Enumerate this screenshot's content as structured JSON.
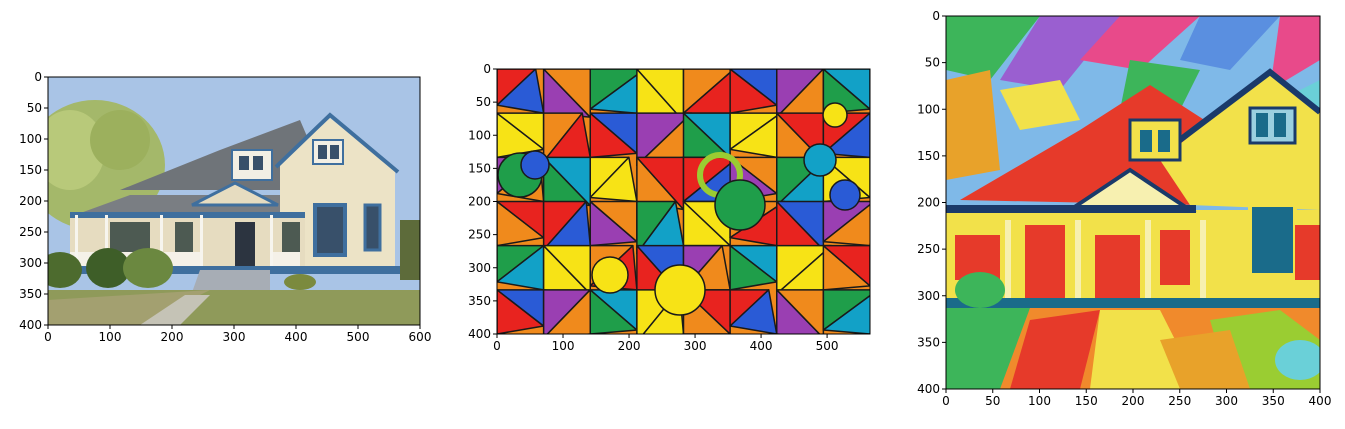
{
  "panels": [
    {
      "id": "house-photo",
      "xticks": [
        "0",
        "100",
        "200",
        "300",
        "400",
        "500",
        "600"
      ],
      "yticks": [
        "0",
        "50",
        "100",
        "150",
        "200",
        "250",
        "300",
        "350",
        "400"
      ],
      "colors": {
        "sky": "#a9c4e6",
        "grass": "#8f9a5a",
        "roof": "#6f7479",
        "siding": "#e6dcc0",
        "trim": "#3f6f9e",
        "tree": "#9bb35c"
      }
    },
    {
      "id": "stained-glass-style",
      "xticks": [
        "0",
        "100",
        "200",
        "300",
        "400",
        "500"
      ],
      "yticks": [
        "0",
        "50",
        "100",
        "150",
        "200",
        "250",
        "300",
        "350",
        "400"
      ],
      "colors": {
        "palette": [
          "#e8231f",
          "#f7e316",
          "#1f9e4a",
          "#2a5bd6",
          "#f08a1c",
          "#12a1c7",
          "#9a3fb2",
          "#e8231f",
          "#f7e316",
          "#f08a1c"
        ]
      }
    },
    {
      "id": "stylized-house",
      "xticks": [
        "0",
        "50",
        "100",
        "150",
        "200",
        "250",
        "300",
        "350",
        "400"
      ],
      "yticks": [
        "0",
        "50",
        "100",
        "150",
        "200",
        "250",
        "300",
        "350",
        "400"
      ],
      "colors": {
        "sky": "#7fb9e8",
        "roof": "#e63a2a",
        "wall": "#f2e14a",
        "window": "#1a6b8a",
        "ground": "#f08a2c",
        "accent": "#3db55a"
      }
    }
  ]
}
